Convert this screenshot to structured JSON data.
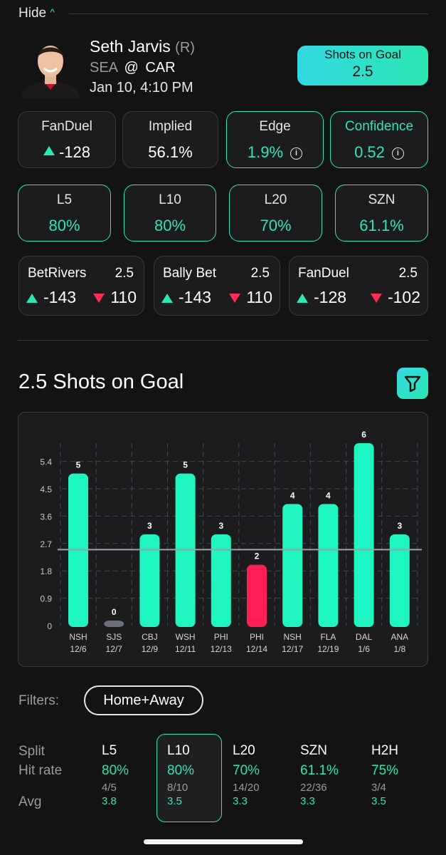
{
  "header": {
    "hide_label": "Hide"
  },
  "player": {
    "name": "Seth Jarvis",
    "tag": "(R)",
    "away": "SEA",
    "at": "@",
    "home": "CAR",
    "datetime": "Jan 10, 4:10 PM"
  },
  "prop": {
    "label": "Shots on Goal",
    "line": "2.5"
  },
  "stats": {
    "fanduel": {
      "label": "FanDuel",
      "value": "-128"
    },
    "implied": {
      "label": "Implied",
      "value": "56.1%"
    },
    "edge": {
      "label": "Edge",
      "value": "1.9%"
    },
    "confidence": {
      "label": "Confidence",
      "value": "0.52"
    }
  },
  "hit_rates": [
    {
      "label": "L5",
      "value": "80%"
    },
    {
      "label": "L10",
      "value": "80%"
    },
    {
      "label": "L20",
      "value": "70%"
    },
    {
      "label": "SZN",
      "value": "61.1%"
    }
  ],
  "books": [
    {
      "name": "BetRivers",
      "line": "2.5",
      "over": "-143",
      "under": "110"
    },
    {
      "name": "Bally Bet",
      "line": "2.5",
      "over": "-143",
      "under": "110"
    },
    {
      "name": "FanDuel",
      "line": "2.5",
      "over": "-128",
      "under": "-102"
    }
  ],
  "section_title": "2.5 Shots on Goal",
  "chart_data": {
    "type": "bar",
    "categories": [
      "NSH 12/6",
      "SJS 12/7",
      "CBJ 12/9",
      "WSH 12/11",
      "PHI 12/13",
      "PHI 12/14",
      "NSH 12/17",
      "FLA 12/19",
      "DAL 1/6",
      "ANA 1/8"
    ],
    "teams": [
      "NSH",
      "SJS",
      "CBJ",
      "WSH",
      "PHI",
      "PHI",
      "NSH",
      "FLA",
      "DAL",
      "ANA"
    ],
    "dates": [
      "12/6",
      "12/7",
      "12/9",
      "12/11",
      "12/13",
      "12/14",
      "12/17",
      "12/19",
      "1/6",
      "1/8"
    ],
    "values": [
      5,
      0,
      3,
      5,
      3,
      2,
      4,
      4,
      6,
      3
    ],
    "line": 2.5,
    "yticks": [
      "0",
      "0.9",
      "1.8",
      "2.7",
      "3.6",
      "4.5",
      "5.4"
    ],
    "ylim": [
      0,
      6
    ],
    "colors": {
      "over": "#1ef5c0",
      "under": "#ff1f55",
      "zero": "#6b6f78"
    }
  },
  "filters": {
    "label": "Filters:",
    "value": "Home+Away"
  },
  "table": {
    "row_labels": [
      "Split",
      "Hit rate",
      "Avg"
    ],
    "columns": [
      {
        "label": "L5",
        "pct": "80%",
        "frac": "4/5",
        "avg": "3.8"
      },
      {
        "label": "L10",
        "pct": "80%",
        "frac": "8/10",
        "avg": "3.5"
      },
      {
        "label": "L20",
        "pct": "70%",
        "frac": "14/20",
        "avg": "3.3"
      },
      {
        "label": "SZN",
        "pct": "61.1%",
        "frac": "22/36",
        "avg": "3.3"
      },
      {
        "label": "H2H",
        "pct": "75%",
        "frac": "3/4",
        "avg": "3.5"
      }
    ]
  }
}
